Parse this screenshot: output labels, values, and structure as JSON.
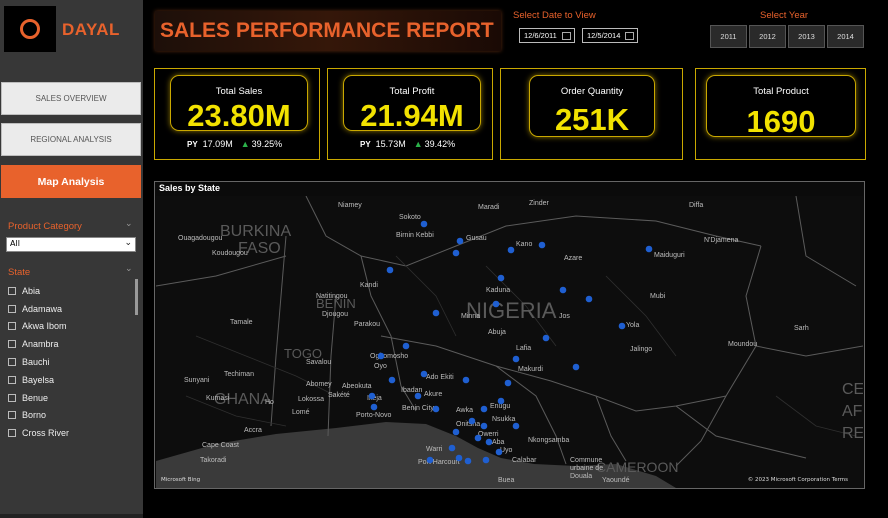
{
  "brand": {
    "name": "DAYAL",
    "accent": "#e8622c"
  },
  "nav": [
    {
      "label": "SALES OVERVIEW",
      "active": false
    },
    {
      "label": "REGIONAL ANALYSIS",
      "active": false
    },
    {
      "label": "Map Analysis",
      "active": true
    }
  ],
  "filters": {
    "product_category": {
      "label": "Product Category",
      "value": "All"
    },
    "state": {
      "label": "State",
      "items": [
        "Abia",
        "Adamawa",
        "Akwa Ibom",
        "Anambra",
        "Bauchi",
        "Bayelsa",
        "Benue",
        "Borno",
        "Cross River"
      ]
    }
  },
  "header": {
    "title": "SALES PERFORMANCE REPORT"
  },
  "date_filter": {
    "label": "Select Date to View",
    "start": "12/6/2011",
    "end": "12/5/2014"
  },
  "year_filter": {
    "label": "Select Year",
    "years": [
      "2011",
      "2012",
      "2013",
      "2014"
    ]
  },
  "kpis": {
    "total_sales": {
      "title": "Total Sales",
      "value": "23.80M",
      "py_label": "PY",
      "py_value": "17.09M",
      "change": "39.25%"
    },
    "total_profit": {
      "title": "Total Profit",
      "value": "21.94M",
      "py_label": "PY",
      "py_value": "15.73M",
      "change": "39.42%"
    },
    "order_quantity": {
      "title": "Order Quantity",
      "value": "251K"
    },
    "total_product": {
      "title": "Total Product",
      "value": "1690"
    }
  },
  "kpi_color": "#f2e200",
  "map": {
    "title": "Sales by State",
    "provider": "Microsoft Bing",
    "copyright": "© 2023 Microsoft Corporation  Terms",
    "place_labels": {
      "burkina": "BURKINA",
      "faso": "FASO",
      "nigeria": "NIGERIA",
      "benin": "BENIN",
      "togo": "TOGO",
      "ghana": "GHANA",
      "cameroon": "CAMEROON",
      "cea": "CE",
      "af": "AF",
      "re": "RE",
      "niamey": "Niamey",
      "sokoto": "Sokoto",
      "maradi": "Maradi",
      "zinder": "Zinder",
      "diffa": "Diffa",
      "birnin_kebbi": "Birnin Kebbi",
      "gusau": "Gusau",
      "kano": "Kano",
      "azare": "Azare",
      "maiduguri": "Maiduguri",
      "ndjamena": "N'Djamena",
      "ouagadougou": "Ouagadougou",
      "koudougou": "Koudougou",
      "kandi": "Kandi",
      "natitingou": "Natitingou",
      "djougou": "Djougou",
      "parakou": "Parakou",
      "tamale": "Tamale",
      "kaduna": "Kaduna",
      "minna": "Minna",
      "abuja": "Abuja",
      "lafia": "Lafia",
      "jos": "Jos",
      "mubi": "Mubi",
      "yola": "Yola",
      "sarh": "Sarh",
      "moundou": "Moundou",
      "savalou": "Savalou",
      "ogbomosho": "Ogbomosho",
      "oyo": "Oyo",
      "techiman": "Techiman",
      "sunyani": "Sunyani",
      "kumasi": "Kumasi",
      "abomey": "Abomey",
      "abeokuta": "Abeokuta",
      "ado_ekiti": "Ado Ekiti",
      "ibadan": "Ibadan",
      "akure": "Akure",
      "makurdi": "Makurdi",
      "jalingo": "Jalingo",
      "ikeja": "Ikeja",
      "lome": "Lomé",
      "lokossa": "Lokossa",
      "sakete": "Sakété",
      "porto_novo": "Porto-Novo",
      "benin_city": "Benin City",
      "awka": "Awka",
      "enugu": "Enugu",
      "onitsha": "Onitsha",
      "nsukka": "Nsukka",
      "owerri": "Owerri",
      "aba": "Aba",
      "uyo": "Uyo",
      "calabar": "Calabar",
      "accra": "Accra",
      "cape_coast": "Cape Coast",
      "takoradi": "Takoradi",
      "port_harcourt": "Port Harcourt",
      "warri": "Warri",
      "commune": "Commune",
      "urbaine_de": "urbaine de",
      "douala": "Douala",
      "yaounde": "Yaoundé",
      "buea": "Buea",
      "ho": "Ho",
      "nkongsamba": "Nkongsamba"
    }
  }
}
